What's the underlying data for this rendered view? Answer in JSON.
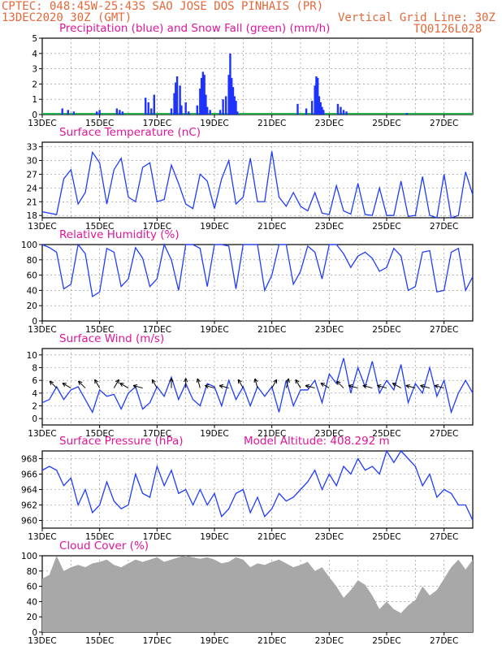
{
  "header": {
    "line1": "CPTEC:   048:45W-25:43S  SAO JOSE DOS PINHAIS (PR)",
    "line2_left": "13DEC2020 30Z (GMT)",
    "line2_right": "Vertical Grid Line: 30Z",
    "id_code": "TQ0126L028"
  },
  "colors": {
    "precip": "#1f33ff",
    "snow": "#22b14c",
    "line": "#1f3cff",
    "cloud": "#a8a8a8",
    "title": "#e0159b",
    "header": "#e4683a"
  },
  "x_ticks": [
    "13DEC",
    "15DEC",
    "17DEC",
    "19DEC",
    "21DEC",
    "23DEC",
    "25DEC",
    "27DEC"
  ],
  "chart_data": [
    {
      "type": "bar",
      "title": "Precipitation (blue) and Snow Fall (green) (mm/h)",
      "ylim": [
        0,
        5
      ],
      "yticks": [
        "0",
        "1",
        "2",
        "3",
        "4",
        "5"
      ],
      "x_days": [
        0.7,
        0.9,
        1.1,
        1.9,
        2.0,
        2.6,
        2.7,
        2.8,
        3.6,
        3.7,
        3.8,
        3.9,
        4.5,
        4.6,
        4.65,
        4.7,
        4.8,
        4.85,
        5.0,
        5.1,
        5.4,
        5.5,
        5.55,
        5.6,
        5.65,
        5.7,
        5.75,
        5.85,
        6.2,
        6.3,
        6.4,
        6.5,
        6.55,
        6.6,
        6.65,
        6.7,
        6.75,
        6.8,
        8.9,
        9.2,
        9.4,
        9.5,
        9.55,
        9.6,
        9.65,
        9.7,
        9.75,
        9.8,
        10.3,
        10.4,
        10.5,
        10.6,
        12.7
      ],
      "values": [
        0.4,
        0.3,
        0.2,
        0.2,
        0.3,
        0.4,
        0.3,
        0.2,
        1.1,
        0.8,
        0.4,
        1.3,
        0.4,
        1.4,
        2.1,
        2.5,
        1.9,
        0.6,
        0.8,
        0.2,
        0.6,
        1.7,
        2.4,
        2.8,
        2.6,
        1.3,
        0.5,
        0.3,
        0.3,
        1.0,
        1.2,
        2.6,
        4.0,
        2.4,
        1.8,
        1.2,
        0.9,
        0.2,
        0.7,
        0.4,
        0.9,
        1.9,
        2.5,
        2.4,
        1.2,
        0.8,
        0.5,
        0.3,
        0.7,
        0.5,
        0.3,
        0.2,
        0.1
      ]
    },
    {
      "type": "line",
      "title": "Surface Temperature (nC)",
      "ylim": [
        17.5,
        34
      ],
      "yticks": [
        "18",
        "21",
        "24",
        "27",
        "30",
        "33"
      ],
      "x_days": [
        0,
        0.5,
        0.75,
        1.0,
        1.25,
        1.5,
        1.75,
        2.0,
        2.25,
        2.5,
        2.75,
        3.0,
        3.25,
        3.5,
        3.75,
        4.0,
        4.25,
        4.5,
        4.75,
        5.0,
        5.25,
        5.5,
        5.75,
        6.0,
        6.25,
        6.5,
        6.75,
        7.0,
        7.25,
        7.5,
        7.75,
        8.0,
        8.25,
        8.5,
        8.75,
        9.0,
        9.25,
        9.5,
        9.75,
        10.0,
        10.25,
        10.5,
        10.75,
        11.0,
        11.25,
        11.5,
        11.75,
        12.0,
        12.25,
        12.5,
        12.75,
        13.0,
        13.25,
        13.5,
        13.75,
        14.0,
        14.25,
        14.5,
        14.75,
        15.0
      ],
      "values": [
        18.8,
        18.2,
        26.0,
        28.0,
        20.5,
        23.0,
        31.8,
        29.5,
        20.5,
        28.0,
        30.5,
        22.0,
        21.0,
        28.5,
        29.5,
        21.0,
        21.5,
        29.0,
        25.0,
        20.5,
        19.5,
        27.0,
        25.5,
        19.5,
        26.0,
        30.0,
        20.5,
        22.0,
        30.5,
        21.0,
        21.0,
        32.0,
        22.0,
        20.0,
        23.0,
        20.0,
        19.0,
        23.0,
        18.5,
        18.2,
        24.5,
        19.0,
        18.3,
        25.0,
        18.2,
        18.0,
        24.0,
        18.0,
        18.0,
        25.5,
        17.8,
        18.0,
        26.5,
        18.0,
        17.5,
        27.0,
        17.5,
        18.0,
        27.5,
        22.5
      ]
    },
    {
      "type": "line",
      "title": "Relative Humidity (%)",
      "ylim": [
        0,
        100
      ],
      "yticks": [
        "0",
        "20",
        "40",
        "60",
        "80",
        "100"
      ],
      "x_days": [
        0,
        0.25,
        0.5,
        0.75,
        1.0,
        1.25,
        1.5,
        1.75,
        2.0,
        2.25,
        2.5,
        2.75,
        3.0,
        3.25,
        3.5,
        3.75,
        4.0,
        4.25,
        4.5,
        4.75,
        5.0,
        5.25,
        5.5,
        5.75,
        6.0,
        6.25,
        6.5,
        6.75,
        7.0,
        7.25,
        7.5,
        7.75,
        8.0,
        8.25,
        8.5,
        8.75,
        9.0,
        9.25,
        9.5,
        9.75,
        10.0,
        10.25,
        10.5,
        10.75,
        11.0,
        11.25,
        11.5,
        11.75,
        12.0,
        12.25,
        12.5,
        12.75,
        13.0,
        13.25,
        13.5,
        13.75,
        14.0,
        14.25,
        14.5,
        14.75,
        15.0
      ],
      "values": [
        100,
        96,
        90,
        42,
        48,
        100,
        88,
        32,
        38,
        95,
        90,
        45,
        55,
        96,
        82,
        45,
        55,
        100,
        80,
        40,
        100,
        100,
        95,
        45,
        100,
        100,
        98,
        42,
        100,
        100,
        100,
        40,
        60,
        100,
        100,
        48,
        65,
        98,
        90,
        55,
        100,
        100,
        88,
        70,
        85,
        90,
        82,
        65,
        70,
        95,
        85,
        40,
        45,
        90,
        92,
        38,
        40,
        90,
        95,
        40,
        58
      ]
    },
    {
      "type": "line",
      "title": "Surface Wind (m/s)",
      "ylim": [
        -1,
        11
      ],
      "yticks": [
        "0",
        "2",
        "4",
        "6",
        "8",
        "10"
      ],
      "x_days": [
        0,
        0.25,
        0.5,
        0.75,
        1.0,
        1.25,
        1.5,
        1.75,
        2.0,
        2.25,
        2.5,
        2.75,
        3.0,
        3.25,
        3.5,
        3.75,
        4.0,
        4.25,
        4.5,
        4.75,
        5.0,
        5.25,
        5.5,
        5.75,
        6.0,
        6.25,
        6.5,
        6.75,
        7.0,
        7.25,
        7.5,
        7.75,
        8.0,
        8.25,
        8.5,
        8.75,
        9.0,
        9.25,
        9.5,
        9.75,
        10.0,
        10.25,
        10.5,
        10.75,
        11.0,
        11.25,
        11.5,
        11.75,
        12.0,
        12.25,
        12.5,
        12.75,
        13.0,
        13.25,
        13.5,
        13.75,
        14.0,
        14.25,
        14.5,
        14.75,
        15.0
      ],
      "values": [
        2.5,
        3.0,
        5.0,
        3.0,
        4.5,
        5.0,
        3.0,
        1.0,
        4.5,
        3.5,
        3.8,
        1.5,
        4.0,
        5.0,
        1.5,
        2.5,
        5.0,
        3.5,
        6.5,
        3.0,
        5.5,
        3.0,
        2.0,
        5.5,
        5.0,
        2.0,
        6.0,
        3.0,
        5.0,
        2.0,
        5.0,
        3.5,
        5.0,
        1.0,
        6.0,
        2.0,
        4.5,
        4.5,
        6.0,
        2.5,
        7.0,
        5.5,
        9.5,
        4.0,
        8.0,
        5.0,
        9.0,
        4.0,
        6.0,
        4.5,
        8.5,
        2.5,
        5.5,
        4.0,
        8.0,
        3.5,
        6.0,
        1.0,
        4.0,
        6.0,
        4.0
      ],
      "arrow_angles_deg": [
        135,
        150,
        135,
        120,
        60,
        150,
        165,
        120,
        90,
        90,
        105,
        165,
        165,
        120,
        105,
        60,
        75,
        120,
        165,
        150,
        135,
        165,
        165,
        165,
        150,
        165,
        165,
        165
      ]
    },
    {
      "type": "line",
      "title": "Surface Pressure (hPa)",
      "annotation": "Model Altitude: 408.292  m",
      "ylim": [
        959,
        969
      ],
      "yticks": [
        "960",
        "962",
        "964",
        "966",
        "968"
      ],
      "x_days": [
        0,
        0.25,
        0.5,
        0.75,
        1.0,
        1.25,
        1.5,
        1.75,
        2.0,
        2.25,
        2.5,
        2.75,
        3.0,
        3.25,
        3.5,
        3.75,
        4.0,
        4.25,
        4.5,
        4.75,
        5.0,
        5.25,
        5.5,
        5.75,
        6.0,
        6.25,
        6.5,
        6.75,
        7.0,
        7.25,
        7.5,
        7.75,
        8.0,
        8.25,
        8.5,
        8.75,
        9.0,
        9.25,
        9.5,
        9.75,
        10.0,
        10.25,
        10.5,
        10.75,
        11.0,
        11.25,
        11.5,
        11.75,
        12.0,
        12.25,
        12.5,
        12.75,
        13.0,
        13.25,
        13.5,
        13.75,
        14.0,
        14.25,
        14.5,
        14.75,
        15.0
      ],
      "values": [
        966.5,
        967.0,
        966.5,
        964.5,
        965.5,
        962.0,
        964.0,
        961.0,
        962.0,
        965.0,
        962.5,
        961.5,
        962.0,
        966.0,
        963.5,
        963.0,
        967.0,
        964.5,
        966.5,
        963.5,
        964.0,
        962.0,
        964.0,
        962.0,
        963.5,
        960.5,
        961.5,
        963.5,
        964.0,
        961.0,
        963.0,
        960.5,
        961.5,
        963.5,
        962.5,
        963.0,
        964.0,
        965.0,
        966.5,
        964.0,
        966.0,
        964.5,
        967.0,
        966.0,
        968.0,
        966.5,
        967.0,
        966.0,
        969.0,
        967.5,
        969.0,
        968.0,
        967.0,
        964.5,
        966.0,
        963.0,
        964.0,
        963.5,
        962.0,
        962.0,
        960.0
      ]
    },
    {
      "type": "area",
      "title": "Cloud Cover (%)",
      "ylim": [
        0,
        100
      ],
      "yticks": [
        "0",
        "20",
        "40",
        "60",
        "80",
        "100"
      ],
      "x_days": [
        0,
        0.25,
        0.5,
        0.75,
        1.0,
        1.25,
        1.5,
        1.75,
        2.0,
        2.25,
        2.5,
        2.75,
        3.0,
        3.25,
        3.5,
        3.75,
        4.0,
        4.25,
        4.5,
        4.75,
        5.0,
        5.25,
        5.5,
        5.75,
        6.0,
        6.25,
        6.5,
        6.75,
        7.0,
        7.25,
        7.5,
        7.75,
        8.0,
        8.25,
        8.5,
        8.75,
        9.0,
        9.25,
        9.5,
        9.75,
        10.0,
        10.25,
        10.5,
        10.75,
        11.0,
        11.25,
        11.5,
        11.75,
        12.0,
        12.25,
        12.5,
        12.75,
        13.0,
        13.25,
        13.5,
        13.75,
        14.0,
        14.25,
        14.5,
        14.75,
        15.0
      ],
      "values": [
        70,
        75,
        100,
        80,
        85,
        88,
        85,
        90,
        92,
        95,
        88,
        85,
        90,
        95,
        92,
        95,
        98,
        92,
        95,
        98,
        100,
        98,
        96,
        98,
        95,
        90,
        92,
        98,
        95,
        85,
        90,
        88,
        92,
        95,
        90,
        85,
        88,
        92,
        80,
        85,
        72,
        60,
        45,
        55,
        68,
        62,
        48,
        30,
        40,
        30,
        25,
        35,
        42,
        60,
        48,
        55,
        70,
        85,
        95,
        82,
        95
      ]
    }
  ]
}
